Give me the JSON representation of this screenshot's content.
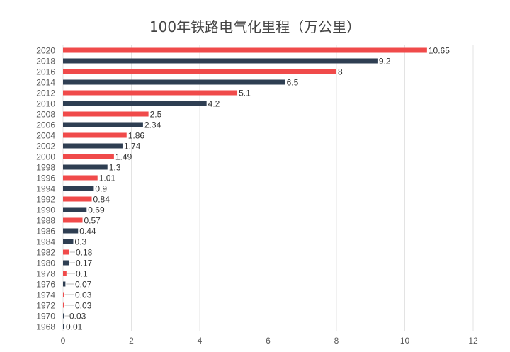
{
  "chart_data": {
    "type": "bar",
    "orientation": "horizontal",
    "title": "100年铁路电气化里程（万公里）",
    "xlabel": "",
    "ylabel": "",
    "xlim": [
      0,
      12
    ],
    "xticks": [
      0,
      2,
      4,
      6,
      8,
      10,
      12
    ],
    "grid": "vertical",
    "legend": "none",
    "categories": [
      "2020",
      "2018",
      "2016",
      "2014",
      "2012",
      "2010",
      "2008",
      "2006",
      "2004",
      "2002",
      "2000",
      "1998",
      "1996",
      "1994",
      "1992",
      "1990",
      "1988",
      "1986",
      "1984",
      "1982",
      "1980",
      "1978",
      "1976",
      "1974",
      "1972",
      "1970",
      "1968"
    ],
    "values": [
      10.65,
      9.2,
      8,
      6.5,
      5.1,
      4.2,
      2.5,
      2.34,
      1.86,
      1.74,
      1.49,
      1.3,
      1.01,
      0.9,
      0.84,
      0.69,
      0.57,
      0.44,
      0.3,
      0.18,
      0.17,
      0.1,
      0.07,
      0.03,
      0.03,
      0.03,
      0.01
    ],
    "data_labels": [
      "10.65",
      "9.2",
      "8",
      "6.5",
      "5.1",
      "4.2",
      "2.5",
      "2.34",
      "1.86",
      "1.74",
      "1.49",
      "1.3",
      "1.01",
      "0.9",
      "0.84",
      "0.69",
      "0.57",
      "0.44",
      "0.3",
      "0.18",
      "0.17",
      "0.1",
      "0.07",
      "0.03",
      "0.03",
      "0.03",
      "0.01"
    ],
    "bar_colors": [
      "red",
      "navy",
      "red",
      "navy",
      "red",
      "navy",
      "red",
      "navy",
      "red",
      "navy",
      "red",
      "navy",
      "red",
      "navy",
      "red",
      "navy",
      "red",
      "navy",
      "navy",
      "red",
      "navy",
      "red",
      "navy",
      "red",
      "red",
      "navy",
      "navy"
    ],
    "colors": {
      "red": "#f04a4a",
      "navy": "#2e3e52",
      "grid": "#e3e3e3"
    }
  }
}
